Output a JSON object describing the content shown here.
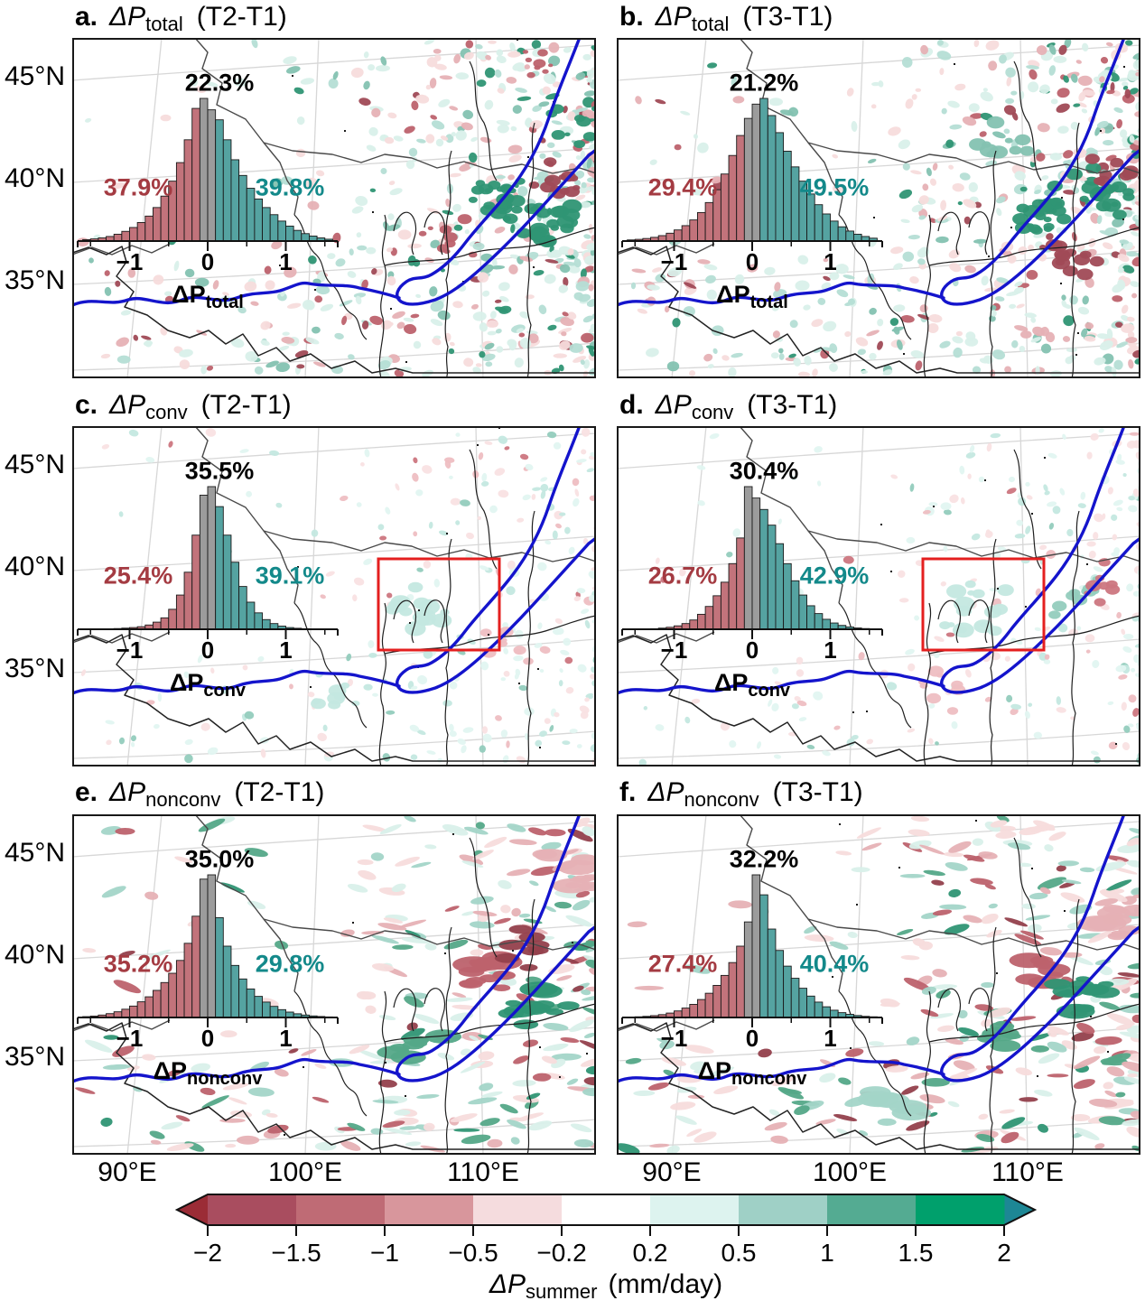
{
  "chart_data": {
    "type": "bar",
    "figure_kind": "six-panel precipitation-change maps with histogram insets and shared colorbar",
    "axes": {
      "lat_ticks": [
        "45°N",
        "40°N",
        "35°N"
      ],
      "lon_ticks": [
        "90°E",
        "100°E",
        "110°E"
      ]
    },
    "hist_axis": {
      "tick_labels": [
        "−1",
        "0",
        "1"
      ],
      "bin_start": -1.6,
      "bin_width": 0.1
    },
    "panels": [
      {
        "id": "a",
        "title_letter": "a.",
        "variable": "ΔP",
        "variable_sub": "total",
        "comparison": "(T2-T1)",
        "pct_neutral": "22.3%",
        "pct_decrease": "37.9%",
        "pct_increase": "39.8%",
        "hist_xlabel": "ΔP",
        "hist_xlabel_sub": "total",
        "red_box": false,
        "histogram_rel_heights": [
          0.01,
          0.015,
          0.022,
          0.032,
          0.048,
          0.068,
          0.095,
          0.13,
          0.175,
          0.235,
          0.315,
          0.42,
          0.55,
          0.71,
          0.93,
          1.0,
          0.92,
          0.85,
          0.71,
          0.57,
          0.46,
          0.37,
          0.295,
          0.235,
          0.185,
          0.14,
          0.105,
          0.075,
          0.052,
          0.035,
          0.022,
          0.013
        ]
      },
      {
        "id": "b",
        "title_letter": "b.",
        "variable": "ΔP",
        "variable_sub": "total",
        "comparison": "(T3-T1)",
        "pct_neutral": "21.2%",
        "pct_decrease": "29.4%",
        "pct_increase": "49.5%",
        "hist_xlabel": "ΔP",
        "hist_xlabel_sub": "total",
        "red_box": false,
        "histogram_rel_heights": [
          0.008,
          0.012,
          0.018,
          0.026,
          0.038,
          0.055,
          0.078,
          0.108,
          0.148,
          0.2,
          0.27,
          0.36,
          0.47,
          0.6,
          0.74,
          0.86,
          0.96,
          1.0,
          0.88,
          0.76,
          0.63,
          0.52,
          0.42,
          0.33,
          0.255,
          0.19,
          0.14,
          0.1,
          0.07,
          0.048,
          0.032,
          0.02
        ]
      },
      {
        "id": "c",
        "title_letter": "c.",
        "variable": "ΔP",
        "variable_sub": "conv",
        "comparison": "(T2-T1)",
        "pct_neutral": "35.5%",
        "pct_decrease": "25.4%",
        "pct_increase": "39.1%",
        "hist_xlabel": "ΔP",
        "hist_xlabel_sub": "conv",
        "red_box": true,
        "histogram_rel_heights": [
          0.001,
          0.001,
          0.002,
          0.003,
          0.005,
          0.008,
          0.012,
          0.018,
          0.03,
          0.05,
          0.08,
          0.14,
          0.24,
          0.4,
          0.66,
          0.94,
          1.0,
          0.86,
          0.66,
          0.47,
          0.3,
          0.19,
          0.115,
          0.068,
          0.04,
          0.022,
          0.012,
          0.007,
          0.004,
          0.002,
          0.001,
          0.001
        ]
      },
      {
        "id": "d",
        "title_letter": "d.",
        "variable": "ΔP",
        "variable_sub": "conv",
        "comparison": "(T3-T1)",
        "pct_neutral": "30.4%",
        "pct_decrease": "26.7%",
        "pct_increase": "42.9%",
        "hist_xlabel": "ΔP",
        "hist_xlabel_sub": "conv",
        "red_box": true,
        "histogram_rel_heights": [
          0.001,
          0.001,
          0.002,
          0.004,
          0.008,
          0.014,
          0.024,
          0.04,
          0.065,
          0.105,
          0.16,
          0.235,
          0.33,
          0.46,
          0.64,
          1.0,
          0.92,
          0.84,
          0.73,
          0.6,
          0.46,
          0.34,
          0.24,
          0.165,
          0.11,
          0.07,
          0.044,
          0.027,
          0.016,
          0.009,
          0.005,
          0.003
        ]
      },
      {
        "id": "e",
        "title_letter": "e.",
        "variable": "ΔP",
        "variable_sub": "nonconv",
        "comparison": "(T2-T1)",
        "pct_neutral": "35.0%",
        "pct_decrease": "35.2%",
        "pct_increase": "29.8%",
        "hist_xlabel": "ΔP",
        "hist_xlabel_sub": "nonconv",
        "red_box": false,
        "histogram_rel_heights": [
          0.006,
          0.01,
          0.017,
          0.027,
          0.04,
          0.058,
          0.08,
          0.11,
          0.145,
          0.19,
          0.245,
          0.31,
          0.4,
          0.52,
          0.71,
          0.97,
          1.0,
          0.7,
          0.5,
          0.365,
          0.27,
          0.2,
          0.148,
          0.108,
          0.078,
          0.055,
          0.038,
          0.026,
          0.017,
          0.011,
          0.007,
          0.004
        ]
      },
      {
        "id": "f",
        "title_letter": "f.",
        "variable": "ΔP",
        "variable_sub": "nonconv",
        "comparison": "(T3-T1)",
        "pct_neutral": "32.2%",
        "pct_decrease": "27.4%",
        "pct_increase": "40.4%",
        "hist_xlabel": "ΔP",
        "hist_xlabel_sub": "nonconv",
        "red_box": false,
        "histogram_rel_heights": [
          0.003,
          0.005,
          0.008,
          0.013,
          0.02,
          0.031,
          0.046,
          0.066,
          0.092,
          0.126,
          0.17,
          0.225,
          0.295,
          0.385,
          0.5,
          0.67,
          1.0,
          0.86,
          0.62,
          0.47,
          0.36,
          0.275,
          0.205,
          0.15,
          0.108,
          0.075,
          0.051,
          0.034,
          0.022,
          0.014,
          0.008,
          0.005
        ]
      }
    ],
    "colorbar": {
      "label": "ΔP",
      "label_sub": "summer",
      "unit": "(mm/day)",
      "tick_labels": [
        "−2",
        "−1.5",
        "−1",
        "−0.5",
        "−0.2",
        "0.2",
        "0.5",
        "1",
        "1.5",
        "2"
      ],
      "segment_colors": [
        "#a94d5f",
        "#bf6b75",
        "#d8969c",
        "#f5dcde",
        "#ffffff",
        "#ddf3ef",
        "#9fd0c6",
        "#54ab92",
        "#00a06c"
      ],
      "arrow_left_color": "#9b2c36",
      "arrow_right_color": "#1d8795"
    },
    "colors": {
      "hist_decrease": "#c2737b",
      "hist_neutral": "#9c9c9c",
      "hist_increase": "#55a3a1",
      "pct_decrease_text": "#a43b42",
      "pct_increase_text": "#13898a",
      "pct_neutral_text": "#000000",
      "river_blue": "#1414cc",
      "red_box": "#e41f1f",
      "boundary": "#4a4a4a",
      "province": "#1f1f1f",
      "graticule": "#d7d7d7",
      "map_border": "#181818"
    }
  }
}
